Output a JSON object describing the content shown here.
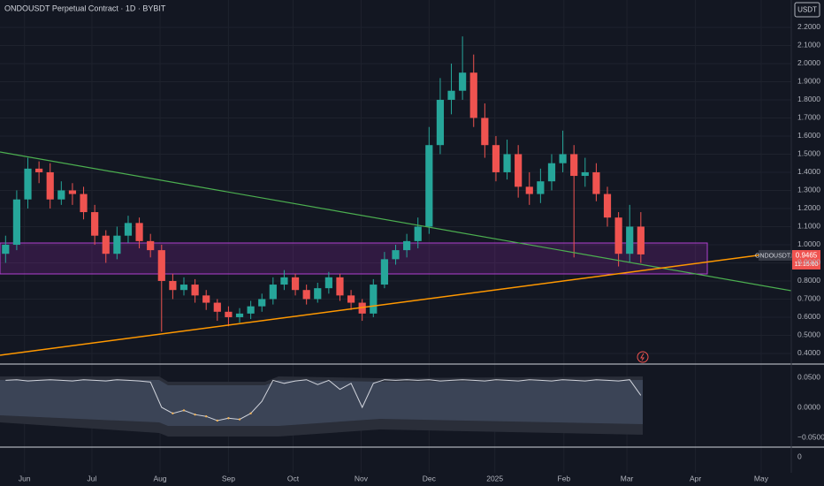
{
  "chart_data": [
    {
      "type": "candlestick",
      "title": "ONDOUSDT Perpetual Contract · 1D · BYBIT",
      "currency": "USDT",
      "symbol_tag": "ONDOUSDT.P",
      "countdown": "11:15:00",
      "up_color": "#26a69a",
      "down_color": "#ef5350",
      "open": [
        0.95,
        1.0,
        1.25,
        1.42,
        1.4,
        1.25,
        1.3,
        1.28,
        1.18,
        1.05,
        0.95,
        1.05,
        1.12,
        1.02,
        0.97,
        0.8,
        0.75,
        0.78,
        0.72,
        0.68,
        0.63,
        0.6,
        0.62,
        0.66,
        0.7,
        0.78,
        0.82,
        0.75,
        0.7,
        0.76,
        0.82,
        0.72,
        0.68,
        0.62,
        0.78,
        0.92,
        0.97,
        1.02,
        1.1,
        1.55,
        1.8,
        1.85,
        1.95,
        1.7,
        1.55,
        1.4,
        1.5,
        1.32,
        1.28,
        1.35,
        1.45,
        1.5,
        1.38,
        1.4,
        1.28,
        1.15,
        0.95,
        1.1
      ],
      "high": [
        1.05,
        1.3,
        1.48,
        1.46,
        1.45,
        1.35,
        1.34,
        1.32,
        1.22,
        1.08,
        1.1,
        1.16,
        1.15,
        1.06,
        1.0,
        0.84,
        0.82,
        0.81,
        0.75,
        0.7,
        0.66,
        0.65,
        0.69,
        0.73,
        0.82,
        0.86,
        0.84,
        0.78,
        0.79,
        0.85,
        0.84,
        0.75,
        0.7,
        0.81,
        0.96,
        1.0,
        1.06,
        1.15,
        1.65,
        1.92,
        2.0,
        2.15,
        2.05,
        1.78,
        1.6,
        1.58,
        1.55,
        1.4,
        1.42,
        1.5,
        1.63,
        1.55,
        1.48,
        1.45,
        1.32,
        1.18,
        1.22,
        1.18
      ],
      "low": [
        0.9,
        0.97,
        1.2,
        1.34,
        1.2,
        1.22,
        1.22,
        1.14,
        1.0,
        0.9,
        0.92,
        1.01,
        0.98,
        0.93,
        0.52,
        0.7,
        0.72,
        0.68,
        0.64,
        0.58,
        0.55,
        0.57,
        0.59,
        0.63,
        0.67,
        0.75,
        0.72,
        0.67,
        0.68,
        0.73,
        0.69,
        0.64,
        0.58,
        0.6,
        0.76,
        0.89,
        0.93,
        0.98,
        1.06,
        1.5,
        1.72,
        1.8,
        1.65,
        1.48,
        1.35,
        1.36,
        1.26,
        1.22,
        1.23,
        1.3,
        1.4,
        0.93,
        1.32,
        1.24,
        1.1,
        0.88,
        0.9,
        0.9
      ],
      "close": [
        1.0,
        1.25,
        1.42,
        1.4,
        1.25,
        1.3,
        1.28,
        1.18,
        1.05,
        0.95,
        1.05,
        1.12,
        1.02,
        0.97,
        0.8,
        0.75,
        0.78,
        0.72,
        0.68,
        0.63,
        0.6,
        0.62,
        0.66,
        0.7,
        0.78,
        0.82,
        0.75,
        0.7,
        0.76,
        0.82,
        0.72,
        0.68,
        0.62,
        0.78,
        0.92,
        0.97,
        1.02,
        1.1,
        1.55,
        1.8,
        1.85,
        1.95,
        1.7,
        1.55,
        1.4,
        1.5,
        1.32,
        1.28,
        1.35,
        1.45,
        1.5,
        1.38,
        1.4,
        1.28,
        1.15,
        0.95,
        1.1,
        0.9465
      ],
      "xlim": [
        0,
        71
      ],
      "xticks": [
        {
          "value": 2.2,
          "label": "Jun"
        },
        {
          "value": 8.25,
          "label": "Jul"
        },
        {
          "value": 14.36,
          "label": "Aug"
        },
        {
          "value": 20.5,
          "label": "Sep"
        },
        {
          "value": 26.3,
          "label": "Oct"
        },
        {
          "value": 32.4,
          "label": "Nov"
        },
        {
          "value": 38.5,
          "label": "Dec"
        },
        {
          "value": 44.4,
          "label": "2025"
        },
        {
          "value": 50.6,
          "label": "Feb"
        },
        {
          "value": 56.25,
          "label": "Mar"
        },
        {
          "value": 62.4,
          "label": "Apr"
        },
        {
          "value": 68.3,
          "label": "May"
        }
      ],
      "ylim": [
        0.351,
        2.351
      ],
      "yticks": [
        {
          "value": 0.4,
          "label": "0.4000"
        },
        {
          "value": 0.5,
          "label": "0.5000"
        },
        {
          "value": 0.6,
          "label": "0.6000"
        },
        {
          "value": 0.7,
          "label": "0.7000"
        },
        {
          "value": 0.8,
          "label": "0.8000"
        },
        {
          "value": 0.9,
          "label": "0.9000"
        },
        {
          "value": 1.0,
          "label": "1.0000"
        },
        {
          "value": 1.1,
          "label": "1.1000"
        },
        {
          "value": 1.2,
          "label": "1.2000"
        },
        {
          "value": 1.3,
          "label": "1.3000"
        },
        {
          "value": 1.4,
          "label": "1.4000"
        },
        {
          "value": 1.5,
          "label": "1.5000"
        },
        {
          "value": 1.6,
          "label": "1.6000"
        },
        {
          "value": 1.7,
          "label": "1.7000"
        },
        {
          "value": 1.8,
          "label": "1.8000"
        },
        {
          "value": 1.9,
          "label": "1.9000"
        },
        {
          "value": 2.0,
          "label": "2.0000"
        },
        {
          "value": 2.1,
          "label": "2.1000"
        },
        {
          "value": 2.2,
          "label": "2.2000"
        }
      ],
      "grid": true
    },
    {
      "type": "line",
      "color": "#d1d4dc",
      "low_color": "#f0b35a",
      "values": [
        0.045,
        0.046,
        0.044,
        0.045,
        0.046,
        0.045,
        0.044,
        0.046,
        0.045,
        0.044,
        0.046,
        0.045,
        0.044,
        0.042,
        0.0,
        -0.01,
        -0.005,
        -0.012,
        -0.015,
        -0.022,
        -0.018,
        -0.02,
        -0.01,
        0.01,
        0.045,
        0.04,
        0.044,
        0.046,
        0.038,
        0.045,
        0.03,
        0.04,
        0.0,
        0.04,
        0.046,
        0.045,
        0.046,
        0.045,
        0.046,
        0.044,
        0.045,
        0.046,
        0.045,
        0.044,
        0.046,
        0.045,
        0.044,
        0.046,
        0.045,
        0.044,
        0.046,
        0.045,
        0.044,
        0.046,
        0.045,
        0.044,
        0.046,
        0.02
      ],
      "ylim": [
        -0.0647,
        0.0706
      ],
      "yticks": [
        {
          "value": 0.05,
          "label": "0.0500"
        },
        {
          "value": 0,
          "label": "0.0000"
        },
        {
          "value": -0.05,
          "label": "−0.0500"
        }
      ]
    },
    {
      "type": "volume",
      "yticks": [
        0
      ]
    }
  ]
}
